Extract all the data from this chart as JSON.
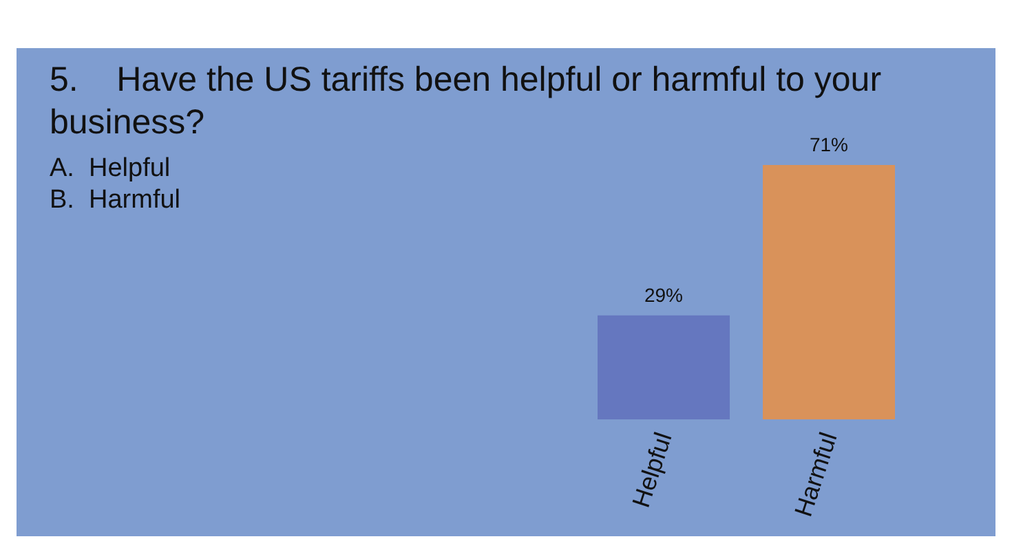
{
  "chart_data": {
    "type": "bar",
    "title": "5.    Have the US tariffs been helpful or harmful to your business?",
    "annotations": [
      "A.  Helpful",
      "B.  Harmful"
    ],
    "categories": [
      "Helpful",
      "Harmful"
    ],
    "values": [
      29,
      71
    ],
    "colors": [
      "#6577bf",
      "#d9925a"
    ],
    "value_labels": [
      "29%",
      "71%"
    ]
  }
}
